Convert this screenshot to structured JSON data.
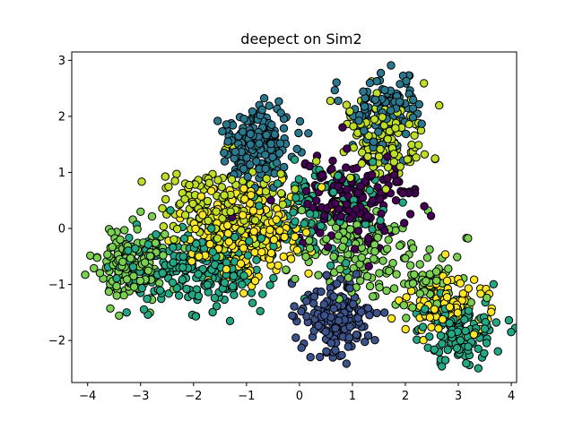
{
  "chart_data": {
    "type": "scatter",
    "title": "deepect on Sim2",
    "xlabel": "",
    "ylabel": "",
    "xlim": [
      -4.3,
      4.1
    ],
    "ylim": [
      -2.75,
      3.15
    ],
    "xticks": [
      -4,
      -3,
      -2,
      -1,
      0,
      1,
      2,
      3,
      4
    ],
    "yticks": [
      -2,
      -1,
      0,
      1,
      2,
      3
    ],
    "grid": false,
    "legend": "none",
    "marker_edge_color": "#000000",
    "colormap": "viridis",
    "clusters": [
      {
        "color": "#7ad151",
        "center": [
          -3.2,
          -0.6
        ],
        "spread": [
          0.32,
          0.32
        ],
        "n": 160
      },
      {
        "color": "#22a884",
        "center": [
          -2.6,
          -0.7
        ],
        "spread": [
          0.45,
          0.35
        ],
        "n": 80
      },
      {
        "color": "#2a788e",
        "center": [
          -0.8,
          1.55
        ],
        "spread": [
          0.32,
          0.35
        ],
        "n": 200
      },
      {
        "color": "#fde725",
        "center": [
          -1.0,
          -0.1
        ],
        "spread": [
          0.55,
          0.45
        ],
        "n": 260
      },
      {
        "color": "#bddf26",
        "center": [
          -1.5,
          0.3
        ],
        "spread": [
          0.55,
          0.45
        ],
        "n": 160
      },
      {
        "color": "#22a884",
        "center": [
          -1.6,
          -0.7
        ],
        "spread": [
          0.5,
          0.35
        ],
        "n": 170
      },
      {
        "color": "#440154",
        "center": [
          1.0,
          0.55
        ],
        "spread": [
          0.55,
          0.4
        ],
        "n": 180
      },
      {
        "color": "#2a788e",
        "center": [
          1.65,
          2.05
        ],
        "spread": [
          0.35,
          0.35
        ],
        "n": 120
      },
      {
        "color": "#bddf26",
        "center": [
          1.6,
          1.6
        ],
        "spread": [
          0.4,
          0.4
        ],
        "n": 140
      },
      {
        "color": "#3b528b",
        "center": [
          0.7,
          -1.6
        ],
        "spread": [
          0.35,
          0.3
        ],
        "n": 170
      },
      {
        "color": "#fde725",
        "center": [
          2.8,
          -1.3
        ],
        "spread": [
          0.35,
          0.3
        ],
        "n": 110
      },
      {
        "color": "#22a884",
        "center": [
          3.0,
          -1.8
        ],
        "spread": [
          0.35,
          0.3
        ],
        "n": 120
      },
      {
        "color": "#7ad151",
        "center": [
          2.3,
          -1.0
        ],
        "spread": [
          0.45,
          0.3
        ],
        "n": 80
      },
      {
        "color": "#7ad151",
        "center": [
          1.0,
          -0.3
        ],
        "spread": [
          0.6,
          0.4
        ],
        "n": 120
      },
      {
        "color": "#22a884",
        "center": [
          0.3,
          0.3
        ],
        "spread": [
          0.6,
          0.5
        ],
        "n": 140
      }
    ]
  }
}
